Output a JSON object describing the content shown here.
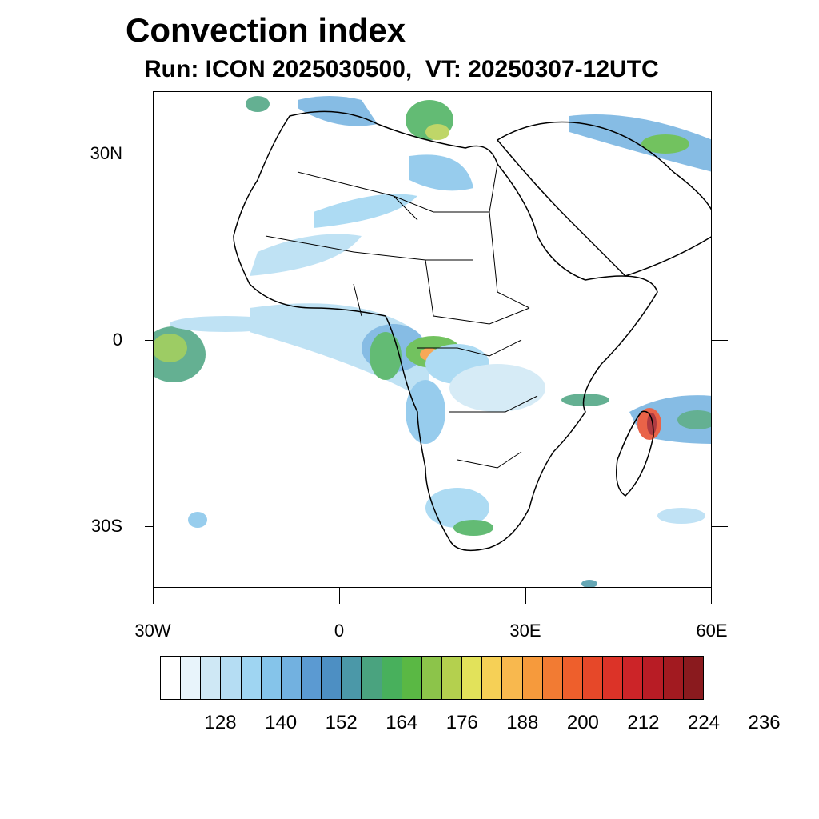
{
  "title": "Convection index",
  "subtitle": "Run: ICON 2025030500,  VT: 20250307-12UTC",
  "map": {
    "region": "Africa",
    "lat_labels": [
      "30N",
      "0",
      "30S"
    ],
    "lon_labels": [
      "30W",
      "0",
      "30E",
      "60E"
    ],
    "background_color": "#ffffff",
    "boundary_color": "#000000"
  },
  "colorbar": {
    "colors": [
      "#ffffff",
      "#e8f4fb",
      "#cfe8f5",
      "#b5ddf3",
      "#9fd5f2",
      "#85c4ea",
      "#72b1e0",
      "#5b9ad2",
      "#4d8fc3",
      "#4b98a8",
      "#4aa37f",
      "#48b05c",
      "#5ab844",
      "#8cc44a",
      "#b4d04e",
      "#e2e25a",
      "#f6d056",
      "#f8b84e",
      "#f69a3c",
      "#f27b33",
      "#ee5f2c",
      "#e64829",
      "#dc3328",
      "#cc2428",
      "#b81c25",
      "#a21a20",
      "#8a1a1e"
    ],
    "labels": [
      "128",
      "140",
      "152",
      "164",
      "176",
      "188",
      "200",
      "212",
      "224",
      "236"
    ]
  }
}
